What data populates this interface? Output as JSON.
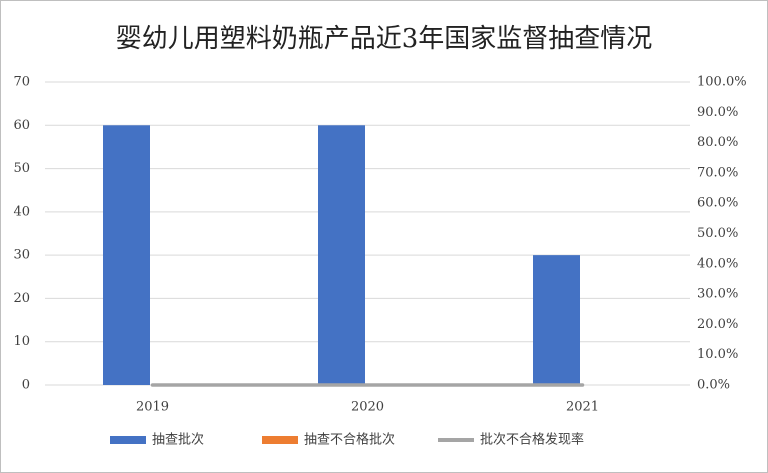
{
  "chart_data": {
    "type": "bar",
    "title": "婴幼儿用塑料奶瓶产品近3年国家监督抽查情况",
    "categories": [
      "2019",
      "2020",
      "2021"
    ],
    "series": [
      {
        "name": "抽查批次",
        "color": "#4472c4",
        "values": [
          60,
          60,
          30
        ]
      },
      {
        "name": "抽查不合格批次",
        "color": "#ed7d31",
        "values": [
          0,
          0,
          0
        ]
      },
      {
        "name": "批次不合格发现率",
        "color": "#a5a5a5",
        "values": [
          0,
          0,
          0
        ],
        "axis": "y2",
        "type": "line"
      }
    ],
    "ylim": [
      0,
      70
    ],
    "yticks": [
      0,
      10,
      20,
      30,
      40,
      50,
      60,
      70
    ],
    "y2lim": [
      0,
      100
    ],
    "y2ticks": [
      {
        "value": 0,
        "label": "0.0%"
      },
      {
        "value": 10,
        "label": "10.0%"
      },
      {
        "value": 20,
        "label": "20.0%"
      },
      {
        "value": 30,
        "label": "30.0%"
      },
      {
        "value": 40,
        "label": "40.0%"
      },
      {
        "value": 50,
        "label": "50.0%"
      },
      {
        "value": 60,
        "label": "60.0%"
      },
      {
        "value": 70,
        "label": "70.0%"
      },
      {
        "value": 80,
        "label": "80.0%"
      },
      {
        "value": 90,
        "label": "90.0%"
      },
      {
        "value": 100,
        "label": "100.0%"
      }
    ],
    "grid": true,
    "legend": "bottom"
  }
}
